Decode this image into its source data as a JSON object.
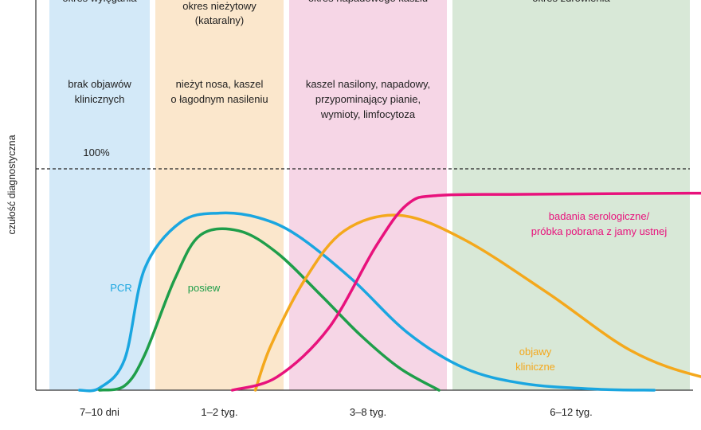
{
  "chart_data": {
    "type": "line",
    "title": "",
    "xlabel": "",
    "ylabel": "czułość diagnostyczna",
    "ylim": [
      0,
      100
    ],
    "reference_line": {
      "value": 100,
      "label": "100%",
      "style": "dashed"
    },
    "phases": [
      {
        "title_lines": [
          "okres wylęgania"
        ],
        "description_lines": [
          "brak objawów",
          "klinicznych"
        ],
        "duration": "7–10 dni",
        "color": "#d3e9f8"
      },
      {
        "title_lines": [
          "okres nieżytowy",
          "(kataralny)"
        ],
        "description_lines": [
          "nieżyt nosa, kaszel",
          "o łagodnym nasileniu"
        ],
        "duration": "1–2 tyg.",
        "color": "#fbe7cc"
      },
      {
        "title_lines": [
          "okres napadowego kaszlu"
        ],
        "description_lines": [
          "kaszel nasilony, napadowy,",
          "przypominający pianie,",
          "wymioty, limfocytoza"
        ],
        "duration": "3–8 tyg.",
        "color": "#f6d6e6"
      },
      {
        "title_lines": [
          "okres zdrowienia"
        ],
        "description_lines": [],
        "duration": "6–12 tyg.",
        "color": "#d8e8d7"
      }
    ],
    "series": [
      {
        "name": "PCR",
        "label_lines": [
          "PCR"
        ],
        "color": "#1aa6e0",
        "x": [
          0.3,
          0.5,
          0.75,
          0.95,
          1.2,
          1.5,
          1.8,
          2.05,
          2.4,
          2.75,
          3.05,
          3.3,
          3.6,
          3.85
        ],
        "values": [
          0,
          1,
          14,
          55,
          76,
          80,
          78,
          70,
          50,
          26,
          10,
          3,
          0.5,
          0
        ]
      },
      {
        "name": "posiew",
        "label_lines": [
          "posiew"
        ],
        "color": "#1f9e4a",
        "x": [
          0.5,
          0.75,
          0.95,
          1.15,
          1.35,
          1.65,
          1.95,
          2.2,
          2.45,
          2.7,
          2.95
        ],
        "values": [
          0,
          2,
          16,
          50,
          70,
          72,
          62,
          43,
          25,
          10,
          0
        ]
      },
      {
        "name": "objawy kliniczne",
        "label_lines": [
          "objawy",
          "kliniczne"
        ],
        "color": "#f4a81c",
        "x": [
          1.78,
          1.9,
          2.1,
          2.35,
          2.7,
          3.05,
          3.4,
          3.75,
          4.05,
          4.35,
          4.6,
          4.85
        ],
        "values": [
          0,
          20,
          50,
          72,
          79,
          68,
          44,
          18,
          6,
          1.5,
          0,
          0
        ]
      },
      {
        "name": "badania serologiczne/ próbka pobrana z jamy ustnej",
        "label_lines": [
          "badania serologiczne/",
          "próbka pobrana z jamy ustnej"
        ],
        "color": "#e8127c",
        "x": [
          1.6,
          1.95,
          2.25,
          2.55,
          2.75,
          2.95,
          3.3,
          4.0,
          5.0,
          5.8
        ],
        "values": [
          0,
          6,
          28,
          65,
          84,
          88,
          88.5,
          89,
          89,
          89
        ]
      }
    ]
  }
}
